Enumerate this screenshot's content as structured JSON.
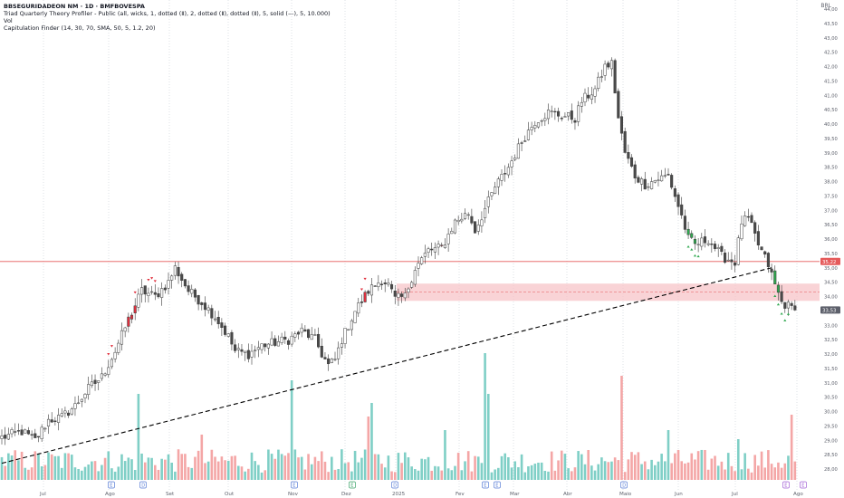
{
  "header": {
    "symbol_line": "BBSEGURIDADEON NM · 1D · BMFBOVESPA",
    "indicator_line": "Triad Quarterly Theory Profiler - Public (all, wicks, 1, dotted (Ⅱ), 2, dotted (Ⅱ), dotted (Ⅱ), 5, solid (—), 5, 10.000)",
    "vol_line": "Vol",
    "capitulation_line": "Capitulation Finder (14, 30, 70, SMA, 50, 5, 1.2, 20)"
  },
  "currency": "BRL",
  "colors": {
    "up": "#ffffff",
    "down": "#4a4a4a",
    "vol_up": "#7fcfc6",
    "vol_down": "#f4a6a6",
    "resistance": "#e55a5a",
    "zone": "#f7c4c8",
    "signal_green": "#2fa84f",
    "signal_red": "#e0303e",
    "trendline": "#000000"
  },
  "markers": {
    "resistance_label": "35,22",
    "last_price_label": "33,53",
    "events": [
      "E",
      "D",
      "E",
      "E",
      "D",
      "E",
      "E",
      "D",
      "E",
      "E"
    ]
  },
  "chart_data": {
    "type": "candlestick",
    "title": "BBSEGURIDADEON NM · 1D · BMFBOVESPA",
    "y_unit": "BRL",
    "ylim": [
      27.9,
      44.2
    ],
    "y_ticks": [
      "28,00",
      "28,50",
      "29,00",
      "29,50",
      "30,00",
      "30,50",
      "31,00",
      "31,50",
      "32,00",
      "32,50",
      "33,00",
      "33,50",
      "34,00",
      "34,50",
      "35,00",
      "35,50",
      "36,00",
      "36,50",
      "37,00",
      "37,50",
      "38,00",
      "38,50",
      "39,00",
      "39,50",
      "40,00",
      "40,50",
      "41,00",
      "41,50",
      "42,00",
      "42,50",
      "43,00",
      "43,50",
      "44,00"
    ],
    "x_ticks": [
      "Jul",
      "Ago",
      "Set",
      "Out",
      "Nov",
      "Dez",
      "2025",
      "Fev",
      "Mar",
      "Abr",
      "Maio",
      "Jun",
      "Jul",
      "Ago"
    ],
    "grid": "vertical dotted",
    "horizontal_level": 35.22,
    "last_price": 33.53,
    "zone": [
      33.85,
      34.45
    ],
    "zone_mid": 34.15,
    "trendline": [
      [
        0,
        28.2
      ],
      [
        123,
        35.0
      ]
    ],
    "waypoints": [
      [
        0,
        29.1
      ],
      [
        6,
        29.3
      ],
      [
        10,
        29.0
      ],
      [
        14,
        29.7
      ],
      [
        18,
        29.8
      ],
      [
        22,
        30.2
      ],
      [
        26,
        30.8
      ],
      [
        30,
        31.2
      ],
      [
        34,
        32.1
      ],
      [
        38,
        33.2
      ],
      [
        42,
        34.2
      ],
      [
        46,
        34.0
      ],
      [
        50,
        34.5
      ],
      [
        52,
        35.0
      ],
      [
        56,
        34.2
      ],
      [
        60,
        33.8
      ],
      [
        64,
        33.3
      ],
      [
        68,
        32.6
      ],
      [
        70,
        32.1
      ],
      [
        74,
        32.0
      ],
      [
        78,
        32.3
      ],
      [
        82,
        32.4
      ],
      [
        86,
        32.5
      ],
      [
        90,
        32.8
      ],
      [
        94,
        32.5
      ],
      [
        96,
        32.0
      ],
      [
        98,
        31.6
      ],
      [
        100,
        31.8
      ],
      [
        102,
        32.5
      ],
      [
        106,
        33.5
      ],
      [
        110,
        34.2
      ],
      [
        114,
        34.6
      ],
      [
        116,
        34.4
      ],
      [
        118,
        33.9
      ],
      [
        121,
        34.0
      ],
      [
        124,
        35.0
      ],
      [
        128,
        35.6
      ],
      [
        132,
        35.7
      ],
      [
        136,
        36.6
      ],
      [
        140,
        36.9
      ],
      [
        142,
        36.3
      ],
      [
        144,
        36.8
      ],
      [
        148,
        37.8
      ],
      [
        152,
        38.5
      ],
      [
        156,
        39.4
      ],
      [
        160,
        40.1
      ],
      [
        164,
        40.4
      ],
      [
        168,
        40.3
      ],
      [
        172,
        40.2
      ],
      [
        174,
        40.8
      ],
      [
        178,
        41.2
      ],
      [
        181,
        42.0
      ],
      [
        183,
        42.1
      ],
      [
        185,
        40.2
      ],
      [
        187,
        39.0
      ],
      [
        190,
        38.2
      ],
      [
        193,
        37.9
      ],
      [
        197,
        38.1
      ],
      [
        200,
        38.2
      ],
      [
        204,
        36.8
      ],
      [
        206,
        36.0
      ],
      [
        208,
        35.8
      ],
      [
        212,
        36.0
      ],
      [
        216,
        35.4
      ],
      [
        220,
        35.2
      ],
      [
        222,
        36.6
      ],
      [
        224,
        36.7
      ],
      [
        227,
        35.8
      ],
      [
        230,
        35.1
      ],
      [
        232,
        34.4
      ],
      [
        234,
        33.8
      ],
      [
        238,
        33.53
      ]
    ],
    "bars": 239,
    "volume_note": "volume histogram at bottom, teal for up days, pink for down days"
  }
}
